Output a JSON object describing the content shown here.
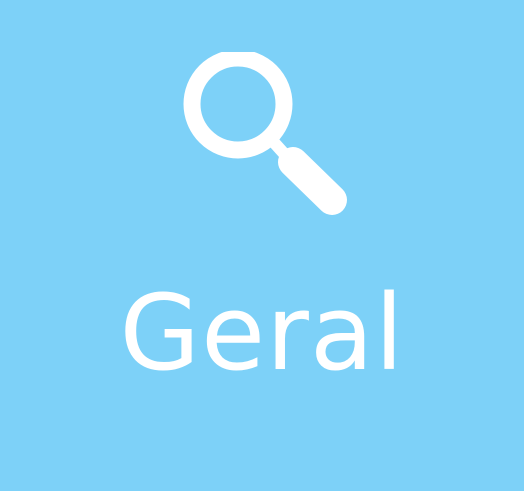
{
  "tile": {
    "label": "Geral",
    "icon": "search-icon",
    "colors": {
      "background": "#7dd1f8",
      "foreground": "#ffffff"
    }
  }
}
